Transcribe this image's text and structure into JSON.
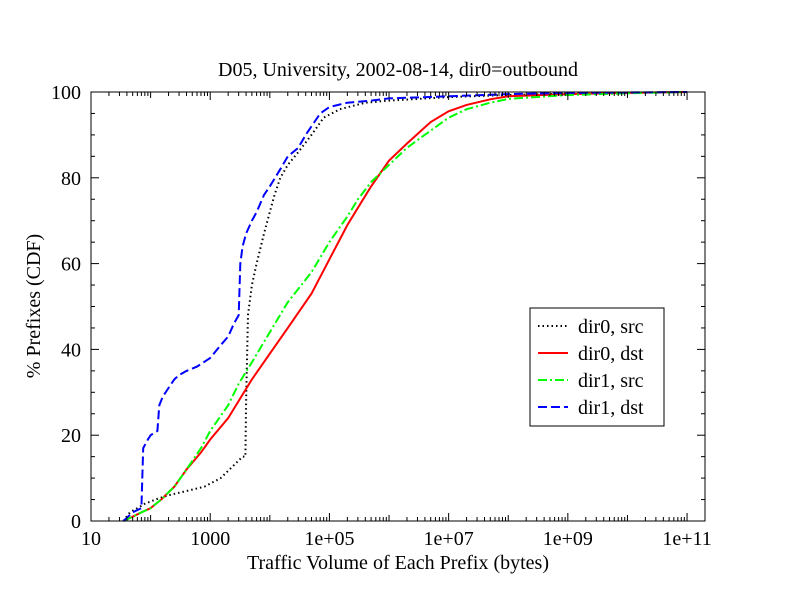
{
  "chart_data": {
    "type": "line",
    "title": "D05, University, 2002-08-14, dir0=outbound",
    "xlabel": "Traffic Volume of Each Prefix (bytes)",
    "ylabel": "% Prefixes (CDF)",
    "x_scale": "log",
    "xlim": [
      10,
      200000000000
    ],
    "ylim": [
      0,
      100
    ],
    "x_ticks": [
      {
        "value": 10,
        "label": "10"
      },
      {
        "value": 1000,
        "label": "1000"
      },
      {
        "value": 100000,
        "label": "1e+05"
      },
      {
        "value": 10000000,
        "label": "1e+07"
      },
      {
        "value": 1000000000,
        "label": "1e+09"
      },
      {
        "value": 100000000000,
        "label": "1e+11"
      }
    ],
    "y_ticks": [
      {
        "value": 0,
        "label": "0"
      },
      {
        "value": 20,
        "label": "20"
      },
      {
        "value": 40,
        "label": "40"
      },
      {
        "value": 60,
        "label": "60"
      },
      {
        "value": 80,
        "label": "80"
      },
      {
        "value": 100,
        "label": "100"
      }
    ],
    "grid": false,
    "legend_position": "right",
    "series": [
      {
        "name": "dir0, src",
        "color": "#000000",
        "dash": "dotted",
        "points": [
          [
            35,
            0
          ],
          [
            45,
            2
          ],
          [
            60,
            3
          ],
          [
            80,
            4
          ],
          [
            120,
            5
          ],
          [
            200,
            6
          ],
          [
            400,
            7
          ],
          [
            800,
            8
          ],
          [
            1500,
            10
          ],
          [
            2500,
            13
          ],
          [
            3500,
            15
          ],
          [
            3900,
            15
          ],
          [
            4000,
            28
          ],
          [
            4300,
            48
          ],
          [
            5000,
            55
          ],
          [
            6000,
            60
          ],
          [
            8000,
            67
          ],
          [
            10000,
            72
          ],
          [
            12000,
            76
          ],
          [
            15000,
            80
          ],
          [
            20000,
            83
          ],
          [
            30000,
            86
          ],
          [
            50000,
            90
          ],
          [
            80000,
            94
          ],
          [
            150000,
            96
          ],
          [
            400000,
            97.5
          ],
          [
            1000000,
            98
          ],
          [
            10000000,
            98.8
          ],
          [
            100000000,
            99.3
          ],
          [
            1000000000,
            99.6
          ],
          [
            10000000000,
            99.8
          ],
          [
            100000000000,
            100
          ]
        ]
      },
      {
        "name": "dir0, dst",
        "color": "#ff0000",
        "dash": "solid",
        "points": [
          [
            35,
            0
          ],
          [
            50,
            1
          ],
          [
            70,
            2
          ],
          [
            100,
            3
          ],
          [
            150,
            5
          ],
          [
            250,
            8
          ],
          [
            400,
            12
          ],
          [
            700,
            16
          ],
          [
            1000,
            19
          ],
          [
            2000,
            24
          ],
          [
            3000,
            28
          ],
          [
            5000,
            33
          ],
          [
            10000,
            39
          ],
          [
            20000,
            45
          ],
          [
            50000,
            53
          ],
          [
            100000,
            61
          ],
          [
            200000,
            69
          ],
          [
            300000,
            73
          ],
          [
            500000,
            78
          ],
          [
            1000000,
            84
          ],
          [
            2000000,
            88
          ],
          [
            5000000,
            93
          ],
          [
            10000000,
            95.5
          ],
          [
            20000000,
            97
          ],
          [
            50000000,
            98.3
          ],
          [
            100000000,
            99
          ],
          [
            1000000000,
            99.5
          ],
          [
            10000000000,
            99.8
          ],
          [
            100000000000,
            100
          ]
        ]
      },
      {
        "name": "dir1, src",
        "color": "#00ff00",
        "dash": "dashdot",
        "points": [
          [
            35,
            0
          ],
          [
            50,
            1
          ],
          [
            70,
            2
          ],
          [
            100,
            3
          ],
          [
            150,
            5
          ],
          [
            250,
            8
          ],
          [
            400,
            12
          ],
          [
            700,
            17
          ],
          [
            1000,
            21
          ],
          [
            2000,
            27
          ],
          [
            3000,
            32
          ],
          [
            5000,
            37
          ],
          [
            10000,
            44
          ],
          [
            20000,
            51
          ],
          [
            50000,
            58
          ],
          [
            100000,
            65
          ],
          [
            200000,
            71
          ],
          [
            300000,
            75
          ],
          [
            500000,
            79
          ],
          [
            1000000,
            83
          ],
          [
            2000000,
            87
          ],
          [
            5000000,
            91
          ],
          [
            10000000,
            94
          ],
          [
            20000000,
            96
          ],
          [
            50000000,
            97.5
          ],
          [
            100000000,
            98.4
          ],
          [
            1000000000,
            99.3
          ],
          [
            10000000000,
            99.7
          ],
          [
            100000000000,
            100
          ]
        ]
      },
      {
        "name": "dir1, dst",
        "color": "#0000ff",
        "dash": "dashed",
        "points": [
          [
            35,
            0
          ],
          [
            50,
            2
          ],
          [
            70,
            3
          ],
          [
            75,
            17
          ],
          [
            90,
            19
          ],
          [
            100,
            20
          ],
          [
            130,
            21
          ],
          [
            140,
            27
          ],
          [
            160,
            29
          ],
          [
            200,
            31
          ],
          [
            250,
            33
          ],
          [
            300,
            34
          ],
          [
            400,
            35
          ],
          [
            600,
            36
          ],
          [
            1000,
            38
          ],
          [
            1500,
            41
          ],
          [
            2000,
            43
          ],
          [
            2500,
            46
          ],
          [
            3000,
            48
          ],
          [
            3200,
            60
          ],
          [
            3500,
            64
          ],
          [
            4000,
            67
          ],
          [
            5000,
            70
          ],
          [
            6000,
            72
          ],
          [
            8000,
            76
          ],
          [
            10000,
            78
          ],
          [
            15000,
            82
          ],
          [
            20000,
            85
          ],
          [
            30000,
            87
          ],
          [
            40000,
            90
          ],
          [
            50000,
            92
          ],
          [
            70000,
            95
          ],
          [
            100000,
            96.5
          ],
          [
            200000,
            97.5
          ],
          [
            500000,
            98
          ],
          [
            1000000,
            98.5
          ],
          [
            10000000,
            99
          ],
          [
            100000000,
            99.5
          ],
          [
            1000000000,
            99.8
          ],
          [
            100000000000,
            100
          ]
        ]
      }
    ]
  }
}
